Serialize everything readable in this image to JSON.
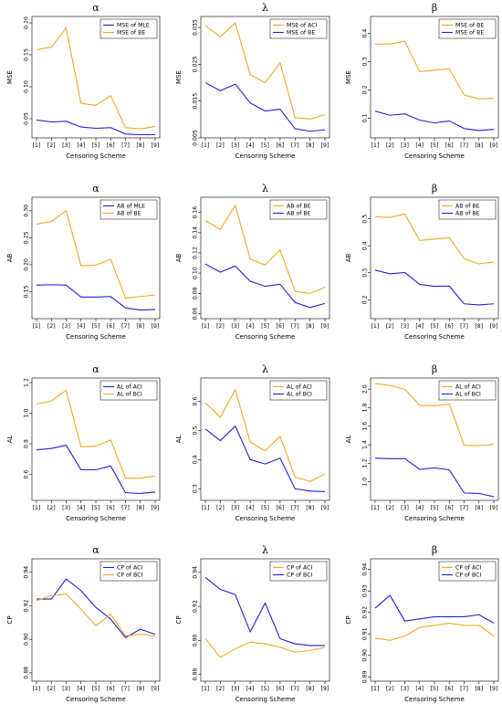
{
  "colors": {
    "orange": "#f5a623",
    "blue": "#1f1fd6"
  },
  "chart_data": [
    {
      "type": "line",
      "title": "α",
      "xlabel": "Censoring Scheme",
      "ylabel": "MSE",
      "categories": [
        "[1]",
        "[2]",
        "[3]",
        "[4]",
        "[5]",
        "[6]",
        "[7]",
        "[8]",
        "[9]"
      ],
      "ylim": [
        0.02,
        0.21
      ],
      "yticks": [
        "0.05",
        "0.10",
        "0.15",
        "0.20"
      ],
      "ytick_values": [
        0.05,
        0.1,
        0.15,
        0.2
      ],
      "legend_pos": "top-right",
      "series": [
        {
          "name": "MSE of MLE",
          "color": "blue",
          "values": [
            0.048,
            0.045,
            0.046,
            0.037,
            0.035,
            0.036,
            0.026,
            0.025,
            0.025
          ]
        },
        {
          "name": "MSE of BE",
          "color": "orange",
          "values": [
            0.158,
            0.162,
            0.192,
            0.074,
            0.071,
            0.086,
            0.036,
            0.034,
            0.038
          ]
        }
      ]
    },
    {
      "type": "line",
      "title": "λ",
      "xlabel": "Censoring Scheme",
      "ylabel": "MSE",
      "categories": [
        "[1]",
        "[2]",
        "[3]",
        "[4]",
        "[5]",
        "[6]",
        "[7]",
        "[8]",
        "[9]"
      ],
      "ylim": [
        0.005,
        0.038
      ],
      "yticks": [
        "0.005",
        "0.015",
        "0.025",
        "0.035"
      ],
      "ytick_values": [
        0.005,
        0.015,
        0.025,
        0.035
      ],
      "legend_pos": "top-right",
      "series": [
        {
          "name": "MSE of ACI",
          "color": "orange",
          "values": [
            0.0355,
            0.0325,
            0.0362,
            0.0222,
            0.02,
            0.0254,
            0.0105,
            0.0101,
            0.0113
          ]
        },
        {
          "name": "MSE of BE",
          "color": "blue",
          "values": [
            0.02,
            0.0178,
            0.0196,
            0.0145,
            0.0123,
            0.0128,
            0.0075,
            0.0068,
            0.0072
          ]
        }
      ]
    },
    {
      "type": "line",
      "title": "β",
      "xlabel": "Censoring Scheme",
      "ylabel": "MSE",
      "categories": [
        "[1]",
        "[2]",
        "[3]",
        "[4]",
        "[5]",
        "[6]",
        "[7]",
        "[8]",
        "[9]"
      ],
      "ylim": [
        0.03,
        0.46
      ],
      "yticks": [
        "0.1",
        "0.2",
        "0.3",
        "0.4"
      ],
      "ytick_values": [
        0.1,
        0.2,
        0.3,
        0.4
      ],
      "legend_pos": "top-right",
      "series": [
        {
          "name": "MSE of BE",
          "color": "orange",
          "values": [
            0.362,
            0.362,
            0.372,
            0.265,
            0.27,
            0.275,
            0.182,
            0.168,
            0.17
          ]
        },
        {
          "name": "MSE of BE",
          "color": "blue",
          "values": [
            0.125,
            0.11,
            0.115,
            0.093,
            0.083,
            0.09,
            0.063,
            0.056,
            0.06
          ]
        }
      ]
    },
    {
      "type": "line",
      "title": "α",
      "xlabel": "Censoring Scheme",
      "ylabel": "AB",
      "categories": [
        "[1]",
        "[2]",
        "[3]",
        "[4]",
        "[5]",
        "[6]",
        "[7]",
        "[8]",
        "[9]"
      ],
      "ylim": [
        0.1,
        0.325
      ],
      "yticks": [
        "0.15",
        "0.20",
        "0.25",
        "0.30"
      ],
      "ytick_values": [
        0.15,
        0.2,
        0.25,
        0.3
      ],
      "legend_pos": "top-right",
      "series": [
        {
          "name": "AB of MLE",
          "color": "blue",
          "values": [
            0.162,
            0.163,
            0.162,
            0.14,
            0.14,
            0.141,
            0.12,
            0.116,
            0.117
          ]
        },
        {
          "name": "AB of BE",
          "color": "orange",
          "values": [
            0.275,
            0.28,
            0.3,
            0.198,
            0.199,
            0.21,
            0.138,
            0.141,
            0.144
          ]
        }
      ]
    },
    {
      "type": "line",
      "title": "λ",
      "xlabel": "Censoring Scheme",
      "ylabel": "AB",
      "categories": [
        "[1]",
        "[2]",
        "[3]",
        "[4]",
        "[5]",
        "[6]",
        "[7]",
        "[8]",
        "[9]"
      ],
      "ylim": [
        0.055,
        0.175
      ],
      "yticks": [
        "0.06",
        "0.08",
        "0.10",
        "0.12",
        "0.14",
        "0.16"
      ],
      "ytick_values": [
        0.06,
        0.08,
        0.1,
        0.12,
        0.14,
        0.16
      ],
      "legend_pos": "top-right",
      "series": [
        {
          "name": "AB of BE",
          "color": "orange",
          "values": [
            0.152,
            0.143,
            0.167,
            0.114,
            0.108,
            0.123,
            0.082,
            0.08,
            0.086
          ]
        },
        {
          "name": "AB of BE",
          "color": "blue",
          "values": [
            0.109,
            0.101,
            0.107,
            0.092,
            0.087,
            0.089,
            0.071,
            0.066,
            0.07
          ]
        }
      ]
    },
    {
      "type": "line",
      "title": "β",
      "xlabel": "Censoring Scheme",
      "ylabel": "AB",
      "categories": [
        "[1]",
        "[2]",
        "[3]",
        "[4]",
        "[5]",
        "[6]",
        "[7]",
        "[8]",
        "[9]"
      ],
      "ylim": [
        0.13,
        0.58
      ],
      "yticks": [
        "0.2",
        "0.3",
        "0.4",
        "0.5"
      ],
      "ytick_values": [
        0.2,
        0.3,
        0.4,
        0.5
      ],
      "legend_pos": "top-right",
      "series": [
        {
          "name": "AB of BE",
          "color": "orange",
          "values": [
            0.508,
            0.505,
            0.518,
            0.42,
            0.425,
            0.43,
            0.352,
            0.333,
            0.34
          ]
        },
        {
          "name": "AB of BE",
          "color": "blue",
          "values": [
            0.31,
            0.296,
            0.301,
            0.257,
            0.25,
            0.251,
            0.185,
            0.181,
            0.185
          ]
        }
      ]
    },
    {
      "type": "line",
      "title": "α",
      "xlabel": "Censoring Scheme",
      "ylabel": "AL",
      "categories": [
        "[1]",
        "[2]",
        "[3]",
        "[4]",
        "[5]",
        "[6]",
        "[7]",
        "[8]",
        "[9]"
      ],
      "ylim": [
        0.43,
        1.23
      ],
      "yticks": [
        "0.6",
        "0.8",
        "1.0",
        "1.2"
      ],
      "ytick_values": [
        0.6,
        0.8,
        1.0,
        1.2
      ],
      "legend_pos": "top-right",
      "series": [
        {
          "name": "AL of ACI",
          "color": "blue",
          "values": [
            0.76,
            0.77,
            0.79,
            0.63,
            0.63,
            0.655,
            0.48,
            0.475,
            0.485
          ]
        },
        {
          "name": "AL of BCI",
          "color": "orange",
          "values": [
            1.06,
            1.08,
            1.15,
            0.78,
            0.785,
            0.825,
            0.575,
            0.575,
            0.59
          ]
        }
      ]
    },
    {
      "type": "line",
      "title": "λ",
      "xlabel": "Censoring Scheme",
      "ylabel": "AL",
      "categories": [
        "[1]",
        "[2]",
        "[3]",
        "[4]",
        "[5]",
        "[6]",
        "[7]",
        "[8]",
        "[9]"
      ],
      "ylim": [
        0.26,
        0.68
      ],
      "yticks": [
        "0.3",
        "0.4",
        "0.5",
        "0.6"
      ],
      "ytick_values": [
        0.3,
        0.4,
        0.5,
        0.6
      ],
      "legend_pos": "top-right",
      "series": [
        {
          "name": "AL of ACI",
          "color": "orange",
          "values": [
            0.595,
            0.545,
            0.64,
            0.46,
            0.43,
            0.48,
            0.34,
            0.325,
            0.35
          ]
        },
        {
          "name": "AL of BCI",
          "color": "blue",
          "values": [
            0.505,
            0.465,
            0.515,
            0.4,
            0.385,
            0.405,
            0.3,
            0.292,
            0.29
          ]
        }
      ]
    },
    {
      "type": "line",
      "title": "β",
      "xlabel": "Censoring Scheme",
      "ylabel": "AL",
      "categories": [
        "[1]",
        "[2]",
        "[3]",
        "[4]",
        "[5]",
        "[6]",
        "[7]",
        "[8]",
        "[9]"
      ],
      "ylim": [
        0.8,
        2.12
      ],
      "yticks": [
        "1.0",
        "1.2",
        "1.4",
        "1.6",
        "1.8",
        "2.0"
      ],
      "ytick_values": [
        1.0,
        1.2,
        1.4,
        1.6,
        1.8,
        2.0
      ],
      "legend_pos": "top-right",
      "series": [
        {
          "name": "AL of ACI",
          "color": "orange",
          "values": [
            2.06,
            2.04,
            2.0,
            1.825,
            1.82,
            1.84,
            1.395,
            1.39,
            1.405
          ]
        },
        {
          "name": "AL of BCI",
          "color": "blue",
          "values": [
            1.255,
            1.25,
            1.25,
            1.135,
            1.15,
            1.13,
            0.88,
            0.875,
            0.84
          ]
        }
      ]
    },
    {
      "type": "line",
      "title": "α",
      "xlabel": "Censoring Scheme",
      "ylabel": "CP",
      "categories": [
        "[1]",
        "[2]",
        "[3]",
        "[4]",
        "[5]",
        "[6]",
        "[7]",
        "[8]",
        "[9]"
      ],
      "ylim": [
        0.875,
        0.948
      ],
      "yticks": [
        "0.88",
        "0.90",
        "0.92",
        "0.94"
      ],
      "ytick_values": [
        0.88,
        0.9,
        0.92,
        0.94
      ],
      "legend_pos": "top-right",
      "series": [
        {
          "name": "CP of ACI",
          "color": "blue",
          "values": [
            0.924,
            0.924,
            0.936,
            0.929,
            0.919,
            0.912,
            0.901,
            0.906,
            0.903
          ]
        },
        {
          "name": "CP of BCI",
          "color": "orange",
          "values": [
            0.923,
            0.926,
            0.927,
            0.918,
            0.908,
            0.915,
            0.902,
            0.903,
            0.902
          ]
        }
      ]
    },
    {
      "type": "line",
      "title": "λ",
      "xlabel": "Censoring Scheme",
      "ylabel": "CP",
      "categories": [
        "[1]",
        "[2]",
        "[3]",
        "[4]",
        "[5]",
        "[6]",
        "[7]",
        "[8]",
        "[9]"
      ],
      "ylim": [
        0.876,
        0.948
      ],
      "yticks": [
        "0.88",
        "0.90",
        "0.92",
        "0.94"
      ],
      "ytick_values": [
        0.88,
        0.9,
        0.92,
        0.94
      ],
      "legend_pos": "top-right",
      "series": [
        {
          "name": "CP of ACI",
          "color": "orange",
          "values": [
            0.901,
            0.89,
            0.895,
            0.899,
            0.898,
            0.896,
            0.893,
            0.894,
            0.896
          ]
        },
        {
          "name": "CP of BCI",
          "color": "blue",
          "values": [
            0.937,
            0.93,
            0.927,
            0.905,
            0.922,
            0.901,
            0.898,
            0.897,
            0.897
          ]
        }
      ]
    },
    {
      "type": "line",
      "title": "β",
      "xlabel": "Censoring Scheme",
      "ylabel": "CP",
      "categories": [
        "[1]",
        "[2]",
        "[3]",
        "[4]",
        "[5]",
        "[6]",
        "[7]",
        "[8]",
        "[9]"
      ],
      "ylim": [
        0.888,
        0.945
      ],
      "yticks": [
        "0.89",
        "0.90",
        "0.91",
        "0.92",
        "0.93",
        "0.94"
      ],
      "ytick_values": [
        0.89,
        0.9,
        0.91,
        0.92,
        0.93,
        0.94
      ],
      "legend_pos": "top-right",
      "series": [
        {
          "name": "CP of ACI",
          "color": "orange",
          "values": [
            0.908,
            0.907,
            0.909,
            0.913,
            0.914,
            0.915,
            0.914,
            0.914,
            0.909
          ]
        },
        {
          "name": "CP of BCI",
          "color": "blue",
          "values": [
            0.922,
            0.928,
            0.916,
            0.917,
            0.918,
            0.918,
            0.918,
            0.919,
            0.915
          ]
        }
      ]
    }
  ]
}
